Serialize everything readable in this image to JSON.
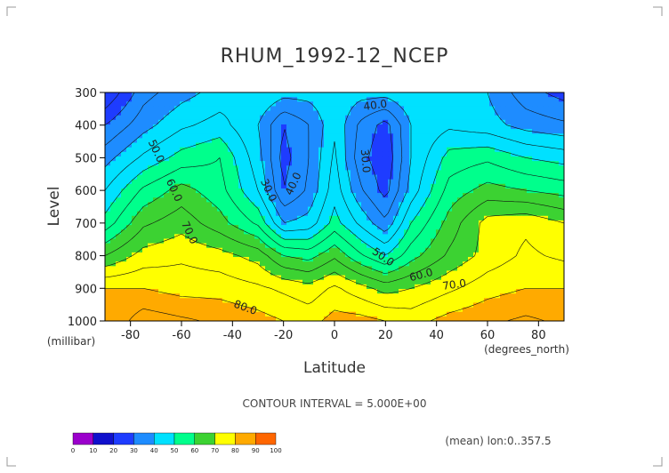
{
  "chart_data": {
    "type": "heatmap",
    "title": "RHUM_1992-12_NCEP",
    "xlabel": "Latitude",
    "ylabel": "Level",
    "x_unit": "(degrees_north)",
    "y_unit": "(millibar)",
    "xlim": [
      -90,
      90
    ],
    "ylim": [
      1000,
      300
    ],
    "x_ticks": [
      "-80",
      "-60",
      "-40",
      "-20",
      "0",
      "20",
      "40",
      "60",
      "80"
    ],
    "y_ticks": [
      "300",
      "400",
      "500",
      "600",
      "700",
      "800",
      "900",
      "1000"
    ],
    "contour_interval_text": "CONTOUR INTERVAL = 5.000E+00",
    "mean_text": "(mean) lon:0..357.5",
    "contour_labels": [
      {
        "text": "40.0",
        "x": 16,
        "y": 340,
        "angle": -8
      },
      {
        "text": "50.0",
        "x": -70,
        "y": 480,
        "angle": 65
      },
      {
        "text": "60.0",
        "x": -63,
        "y": 600,
        "angle": 65
      },
      {
        "text": "70.0",
        "x": -57,
        "y": 730,
        "angle": 65
      },
      {
        "text": "30.0",
        "x": -26,
        "y": 600,
        "angle": 65
      },
      {
        "text": "40.0",
        "x": -16,
        "y": 580,
        "angle": -65
      },
      {
        "text": "30.0",
        "x": 12,
        "y": 510,
        "angle": 85
      },
      {
        "text": "50.0",
        "x": 19,
        "y": 805,
        "angle": 35
      },
      {
        "text": "60.0",
        "x": 34,
        "y": 860,
        "angle": -15
      },
      {
        "text": "70.0",
        "x": 47,
        "y": 890,
        "angle": -8
      },
      {
        "text": "80.0",
        "x": -35,
        "y": 960,
        "angle": 20
      }
    ],
    "colorbar": {
      "levels": [
        0,
        10,
        20,
        30,
        40,
        50,
        60,
        70,
        80,
        90,
        100
      ],
      "colors": [
        "#9b00cc",
        "#1010cc",
        "#1e3cff",
        "#1e8cff",
        "#00e1ff",
        "#00ff8c",
        "#3cd232",
        "#ffff00",
        "#ffaa00",
        "#ff6600",
        "#ff0000",
        "#ff0000"
      ]
    },
    "field_description_grid": {
      "lats": [
        -90,
        -75,
        -60,
        -45,
        -30,
        -20,
        -10,
        0,
        10,
        20,
        30,
        45,
        60,
        75,
        90
      ],
      "levels": [
        300,
        400,
        500,
        600,
        700,
        800,
        900,
        1000
      ],
      "values": [
        [
          20,
          33,
          38,
          42,
          45,
          42,
          42,
          44,
          42,
          42,
          45,
          42,
          40,
          32,
          28
        ],
        [
          30,
          38,
          44,
          47,
          40,
          30,
          35,
          44,
          34,
          28,
          40,
          44,
          42,
          38,
          36
        ],
        [
          38,
          46,
          52,
          55,
          42,
          28,
          35,
          46,
          32,
          26,
          40,
          52,
          54,
          50,
          48
        ],
        [
          45,
          56,
          62,
          57,
          45,
          30,
          36,
          48,
          36,
          28,
          42,
          57,
          62,
          60,
          58
        ],
        [
          52,
          64,
          68,
          62,
          54,
          40,
          42,
          52,
          44,
          36,
          50,
          62,
          72,
          74,
          70
        ],
        [
          65,
          72,
          74,
          72,
          68,
          60,
          58,
          64,
          56,
          50,
          58,
          66,
          72,
          76,
          74
        ],
        [
          80,
          80,
          78,
          78,
          76,
          74,
          72,
          76,
          72,
          68,
          70,
          74,
          78,
          80,
          80
        ],
        [
          80,
          88,
          86,
          84,
          82,
          80,
          78,
          82,
          82,
          80,
          78,
          82,
          84,
          86,
          84
        ]
      ]
    }
  }
}
